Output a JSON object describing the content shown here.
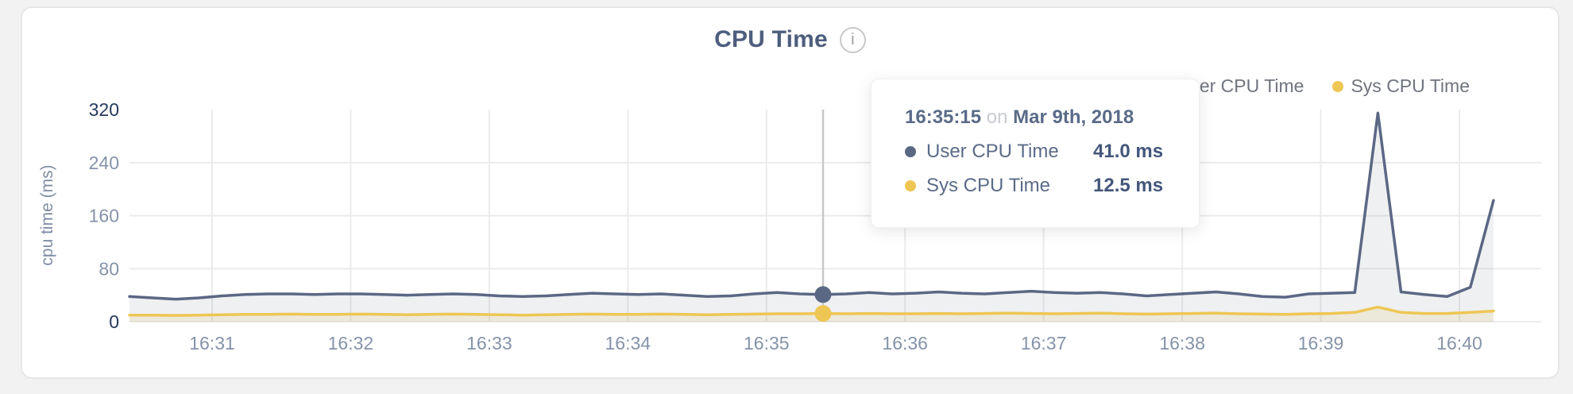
{
  "header": {
    "title": "CPU Time",
    "info_glyph": "i"
  },
  "legend": {
    "items": [
      {
        "label": "User CPU Time",
        "color": "#5b6884"
      },
      {
        "label": "Sys CPU Time",
        "color": "#eec654"
      }
    ]
  },
  "tooltip": {
    "time": "16:35:15",
    "connector": "on",
    "date": "Mar 9th, 2018",
    "rows": [
      {
        "label": "User CPU Time",
        "value": "41.0 ms",
        "color": "#5b6884"
      },
      {
        "label": "Sys CPU Time",
        "value": "12.5 ms",
        "color": "#eec654"
      }
    ]
  },
  "chart_data": {
    "type": "area",
    "title": "CPU Time",
    "xlabel": "",
    "ylabel": "cpu time (ms)",
    "ylim": [
      0,
      320
    ],
    "y_ticks": [
      0,
      80,
      160,
      240,
      320
    ],
    "x_tick_labels": [
      "16:31",
      "16:32",
      "16:33",
      "16:34",
      "16:35",
      "16:36",
      "16:37",
      "16:38",
      "16:39",
      "16:40"
    ],
    "grid": true,
    "legend_position": "top-right",
    "point_interval_seconds": 10,
    "grid_color": "#ebebeb",
    "crosshair_color": "#c6c7c9",
    "tick_color": "#8593a9",
    "tick_color_strong": "#26395c",
    "axis_label_color": "#7f8da4",
    "series": [
      {
        "name": "User CPU Time",
        "unit": "ms",
        "color": "#5b6884",
        "fill": "rgba(91,104,132,0.10)",
        "values": [
          38,
          36,
          34,
          36,
          39,
          41,
          42,
          42,
          41,
          42,
          42,
          41,
          40,
          41,
          42,
          41,
          39,
          38,
          39,
          41,
          43,
          42,
          41,
          42,
          40,
          38,
          39,
          42,
          44,
          42,
          41,
          42,
          44,
          42,
          43,
          45,
          43,
          42,
          44,
          46,
          44,
          43,
          44,
          42,
          39,
          41,
          43,
          45,
          42,
          38,
          37,
          42,
          43,
          44,
          315,
          45,
          41,
          38,
          52,
          183
        ]
      },
      {
        "name": "Sys CPU Time",
        "unit": "ms",
        "color": "#eec654",
        "fill": "rgba(234,196,82,0.15)",
        "values": [
          10,
          10,
          9.5,
          10,
          10.5,
          11,
          11,
          11.5,
          11,
          11,
          11.5,
          11,
          10.5,
          11,
          11.5,
          11,
          10.5,
          10,
          10.5,
          11,
          11.5,
          11,
          11,
          11.5,
          11,
          10.5,
          11,
          11.5,
          12,
          12,
          12.5,
          12,
          12.5,
          12,
          12,
          12.5,
          12,
          12.5,
          13,
          12.5,
          12,
          12.5,
          13,
          12,
          11.5,
          12,
          12.5,
          13,
          12,
          11.5,
          11,
          12,
          12.5,
          14,
          22,
          14,
          12.5,
          12.5,
          14,
          16
        ]
      }
    ],
    "highlight": {
      "index": 30,
      "time": "16:35:15",
      "date": "Mar 9th, 2018",
      "values": {
        "User CPU Time": 41.0,
        "Sys CPU Time": 12.5
      }
    }
  }
}
